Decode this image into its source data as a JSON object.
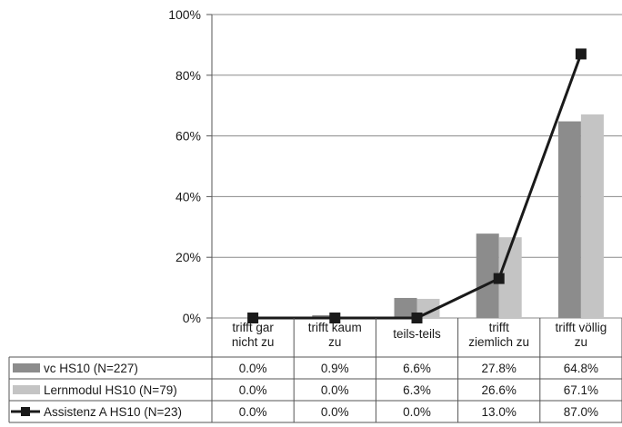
{
  "chart_data": {
    "type": "bar",
    "categories": [
      [
        "trifft gar",
        "nicht zu"
      ],
      [
        "trifft kaum",
        "zu"
      ],
      [
        "teils-teils"
      ],
      [
        "trifft",
        "ziemlich zu"
      ],
      [
        "trifft völlig",
        "zu"
      ]
    ],
    "y_ticks": [
      "0%",
      "20%",
      "40%",
      "60%",
      "80%",
      "100%"
    ],
    "ylim": [
      0,
      100
    ],
    "grid": true,
    "legend_placement": "table-left",
    "series": [
      {
        "name": "vc HS10 (N=227)",
        "kind": "bar",
        "color": "#8c8c8c",
        "values": [
          0.0,
          0.9,
          6.6,
          27.8,
          64.8
        ],
        "labels": [
          "0.0%",
          "0.9%",
          "6.6%",
          "27.8%",
          "64.8%"
        ]
      },
      {
        "name": "Lernmodul HS10 (N=79)",
        "kind": "bar",
        "color": "#c4c4c4",
        "values": [
          0.0,
          0.0,
          6.3,
          26.6,
          67.1
        ],
        "labels": [
          "0.0%",
          "0.0%",
          "6.3%",
          "26.6%",
          "67.1%"
        ]
      },
      {
        "name": "Assistenz A HS10 (N=23)",
        "kind": "line",
        "color": "#1a1a1a",
        "values": [
          0.0,
          0.0,
          0.0,
          13.0,
          87.0
        ],
        "labels": [
          "0.0%",
          "0.0%",
          "0.0%",
          "13.0%",
          "87.0%"
        ]
      }
    ]
  }
}
